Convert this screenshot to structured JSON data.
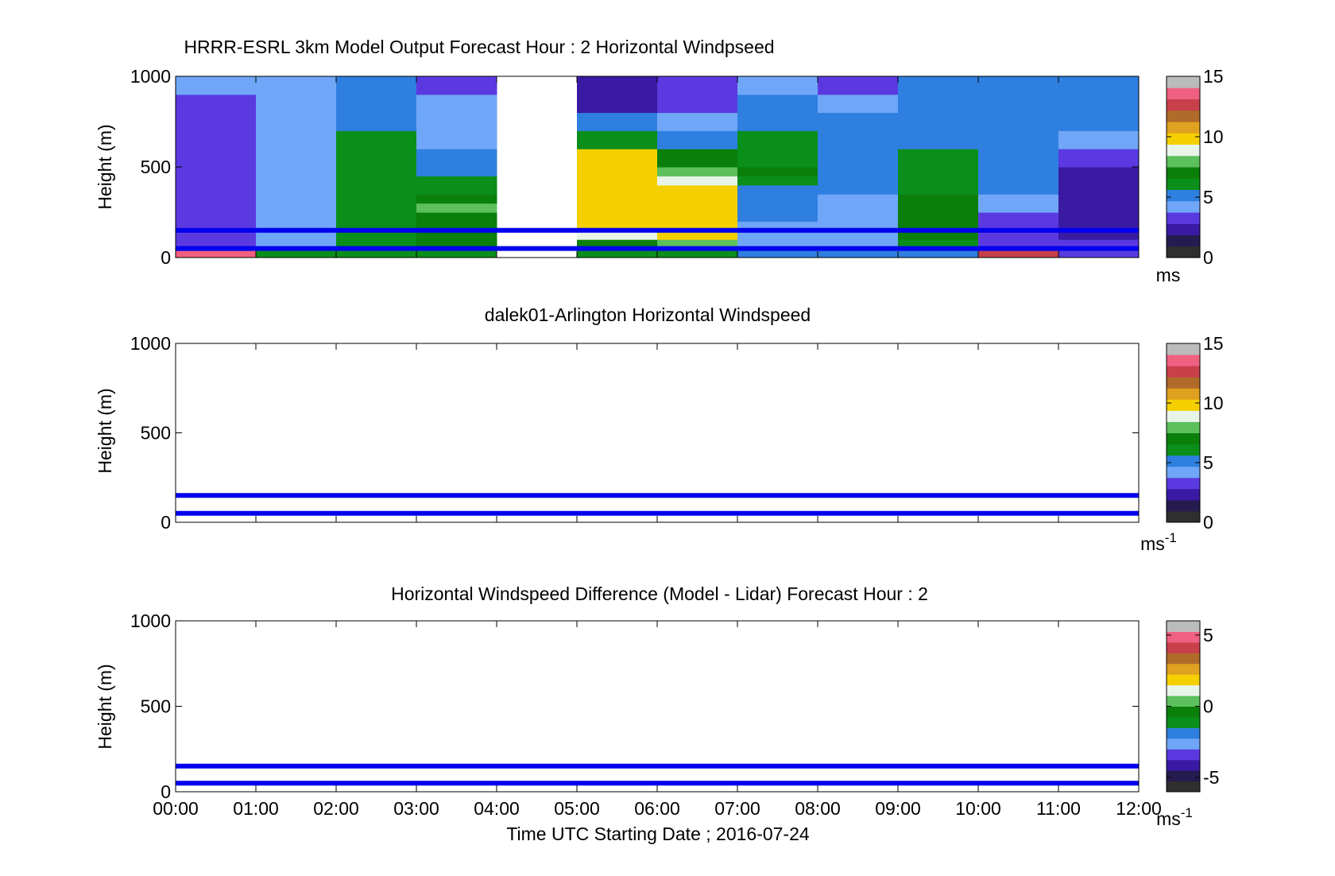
{
  "figure": {
    "xlabel": "Time UTC  Starting Date ; 2016-07-24",
    "xticks": [
      "00:00",
      "01:00",
      "02:00",
      "03:00",
      "04:00",
      "05:00",
      "06:00",
      "07:00",
      "08:00",
      "09:00",
      "10:00",
      "11:00",
      "12:00"
    ]
  },
  "colormap": [
    "#2f2f2f",
    "#261b4f",
    "#3a1aa3",
    "#5a3ae0",
    "#6fa6f7",
    "#2f7fe0",
    "#0a8f1a",
    "#0a7f0a",
    "#5cc05c",
    "#e8f4e8",
    "#f5d000",
    "#e0a020",
    "#b06a2a",
    "#c8404a",
    "#f06080",
    "#bbbbbb"
  ],
  "chart_data": [
    {
      "type": "heatmap",
      "title": "HRRR-ESRL 3km Model Output   Forecast Hour : 2 Horizontal Windpseed",
      "ylabel": "Height (m)",
      "xlim": [
        "00:00",
        "12:00"
      ],
      "ylim": [
        0,
        1000
      ],
      "yticks": [
        0,
        500,
        1000
      ],
      "colorbar": {
        "label": "ms",
        "ticks": [
          0,
          5,
          10,
          15
        ],
        "range": [
          0,
          15
        ]
      },
      "heights": [
        0,
        50,
        100,
        150,
        200,
        250,
        300,
        350,
        400,
        450,
        500,
        600,
        700,
        800,
        900,
        1000
      ],
      "columns": [
        {
          "time": "00:00",
          "speeds": [
            13.5,
            3,
            3,
            3,
            3,
            3,
            3,
            3,
            3,
            3,
            3,
            3,
            3,
            3,
            4
          ]
        },
        {
          "time": "01:00",
          "speeds": [
            6.5,
            4.5,
            4.5,
            4,
            4,
            4,
            4,
            4,
            4,
            4,
            4,
            4,
            4,
            4,
            4
          ]
        },
        {
          "time": "02:00",
          "speeds": [
            5.8,
            6,
            6,
            6,
            6,
            6,
            6,
            6,
            6,
            6,
            6,
            6,
            5.5,
            5,
            5
          ]
        },
        {
          "time": "03:00",
          "speeds": [
            5.8,
            6.8,
            7,
            7.2,
            7.4,
            7.5,
            7,
            6,
            6,
            5,
            4.8,
            4,
            4,
            4,
            3
          ]
        },
        {
          "time": "04:00",
          "speeds": [
            null,
            null,
            null,
            null,
            null,
            null,
            null,
            null,
            null,
            null,
            null,
            null,
            null,
            null,
            null
          ]
        },
        {
          "time": "05:00",
          "speeds": [
            6,
            7,
            9,
            10,
            10,
            10,
            10,
            10,
            10,
            10,
            10,
            6,
            5,
            2,
            2
          ]
        },
        {
          "time": "06:00",
          "speeds": [
            6.5,
            8,
            10,
            10,
            10,
            10,
            9.5,
            9.5,
            9,
            8.2,
            7.2,
            5,
            4,
            3,
            3
          ]
        },
        {
          "time": "07:00",
          "speeds": [
            5,
            4.5,
            4.5,
            4.5,
            5,
            5.5,
            5,
            5.5,
            6,
            7,
            6.5,
            6.5,
            5,
            5,
            4.5
          ]
        },
        {
          "time": "08:00",
          "speeds": [
            5,
            4.5,
            4,
            4,
            4,
            4,
            4,
            5,
            5,
            5,
            5,
            5,
            5,
            4,
            3
          ]
        },
        {
          "time": "09:00",
          "speeds": [
            5.5,
            6.5,
            6.8,
            6.8,
            6.8,
            6.8,
            6.8,
            6.5,
            6.2,
            6,
            5.8,
            5.5,
            5,
            5,
            5
          ]
        },
        {
          "time": "10:00",
          "speeds": [
            13,
            3,
            3,
            3,
            3.5,
            4,
            4.5,
            5,
            5,
            5,
            5,
            5,
            5,
            5,
            5
          ]
        },
        {
          "time": "11:00",
          "speeds": [
            3,
            3,
            2.5,
            2,
            2,
            2,
            2,
            2,
            2,
            2.5,
            3,
            4.5,
            5,
            5,
            5
          ]
        }
      ],
      "lines": [
        {
          "color": "#0000ee",
          "y": 50
        },
        {
          "color": "#0000ee",
          "y": 150
        }
      ]
    },
    {
      "type": "heatmap",
      "title": "dalek01-Arlington  Horizontal Windspeed",
      "ylabel": "Height (m)",
      "xlim": [
        "00:00",
        "12:00"
      ],
      "ylim": [
        0,
        1000
      ],
      "yticks": [
        0,
        500,
        1000
      ],
      "colorbar": {
        "label": "ms",
        "label_sup": "-1",
        "ticks": [
          0,
          5,
          10,
          15
        ],
        "range": [
          0,
          15
        ]
      },
      "lines": [
        {
          "color": "#0000ee",
          "y": 50
        },
        {
          "color": "#0000ee",
          "y": 150
        }
      ]
    },
    {
      "type": "heatmap",
      "title": "Horizontal Windspeed Difference (Model - Lidar) Forecast Hour : 2",
      "ylabel": "Height (m)",
      "xlim": [
        "00:00",
        "12:00"
      ],
      "ylim": [
        0,
        1000
      ],
      "yticks": [
        0,
        500,
        1000
      ],
      "colorbar": {
        "label": "ms",
        "label_sup": "-1",
        "ticks": [
          -5,
          0,
          5
        ],
        "range": [
          -6,
          6
        ]
      },
      "lines": [
        {
          "color": "#0000ee",
          "y": 50
        },
        {
          "color": "#0000ee",
          "y": 150
        }
      ]
    }
  ]
}
